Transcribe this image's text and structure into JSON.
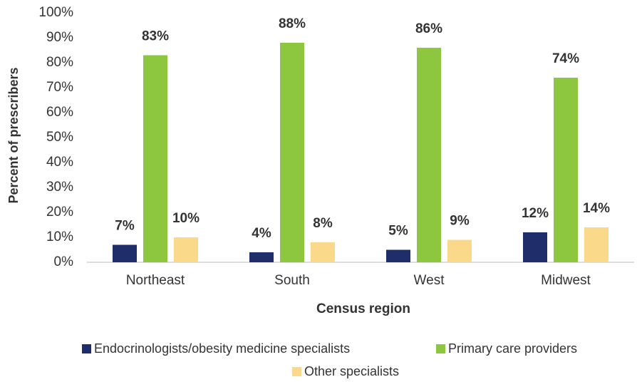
{
  "chart_data": {
    "type": "bar",
    "x_label": "Census region",
    "y_label": "Percent of prescribers",
    "categories": [
      "Northeast",
      "South",
      "West",
      "Midwest"
    ],
    "series": [
      {
        "name": "Endocrinologists/obesity medicine specialists",
        "color": "#1f2d6b",
        "values": [
          7,
          4,
          5,
          12
        ],
        "value_labels": [
          "7%",
          "4%",
          "5%",
          "12%"
        ]
      },
      {
        "name": "Primary care providers",
        "color": "#8dc63f",
        "values": [
          83,
          88,
          86,
          74
        ],
        "value_labels": [
          "83%",
          "88%",
          "86%",
          "74%"
        ]
      },
      {
        "name": "Other specialists",
        "color": "#fad98b",
        "values": [
          10,
          8,
          9,
          14
        ],
        "value_labels": [
          "10%",
          "8%",
          "9%",
          "14%"
        ]
      }
    ],
    "ylim": [
      0,
      100
    ],
    "yticks": [
      {
        "value": 0,
        "label": "0%"
      },
      {
        "value": 10,
        "label": "10%"
      },
      {
        "value": 20,
        "label": "20%"
      },
      {
        "value": 30,
        "label": "30%"
      },
      {
        "value": 40,
        "label": "40%"
      },
      {
        "value": 50,
        "label": "50%"
      },
      {
        "value": 60,
        "label": "60%"
      },
      {
        "value": 70,
        "label": "70%"
      },
      {
        "value": 80,
        "label": "80%"
      },
      {
        "value": 90,
        "label": "90%"
      },
      {
        "value": 100,
        "label": "100%"
      }
    ],
    "grid": false,
    "legend": "bottom"
  }
}
